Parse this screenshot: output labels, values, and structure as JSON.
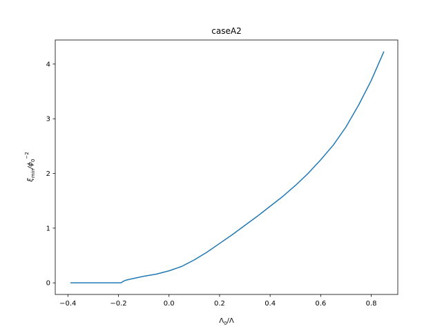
{
  "chart_data": {
    "type": "line",
    "title": "caseA2",
    "xlabel_main": "Λ",
    "xlabel_sub": "0",
    "xlabel_rest": "/Λ",
    "ylabel_main": "ξ",
    "ylabel_sub": "min",
    "ylabel_mid": "/ϕ",
    "ylabel_sub2": "0",
    "ylabel_sup": "−2",
    "xlim": [
      -0.45,
      0.905
    ],
    "ylim": [
      -0.212,
      4.44
    ],
    "xticks": [
      -0.4,
      -0.2,
      0.0,
      0.2,
      0.4,
      0.6,
      0.8
    ],
    "xtick_labels": [
      "−0.4",
      "−0.2",
      "0.0",
      "0.2",
      "0.4",
      "0.6",
      "0.8"
    ],
    "yticks": [
      0,
      1,
      2,
      3,
      4
    ],
    "ytick_labels": [
      "0",
      "1",
      "2",
      "3",
      "4"
    ],
    "grid": false,
    "line_color": "#1f77b4",
    "series": [
      {
        "x": [
          -0.39,
          -0.3,
          -0.19,
          -0.18,
          -0.17,
          -0.16,
          -0.1,
          -0.05,
          0.0,
          0.05,
          0.1,
          0.15,
          0.2,
          0.25,
          0.3,
          0.35,
          0.4,
          0.45,
          0.5,
          0.55,
          0.6,
          0.65,
          0.7,
          0.75,
          0.8,
          0.85
        ],
        "y": [
          0.0,
          0.0,
          0.0,
          0.03,
          0.05,
          0.06,
          0.12,
          0.16,
          0.22,
          0.3,
          0.42,
          0.56,
          0.72,
          0.88,
          1.05,
          1.22,
          1.4,
          1.58,
          1.78,
          2.0,
          2.25,
          2.52,
          2.85,
          3.25,
          3.7,
          4.23
        ]
      }
    ]
  }
}
